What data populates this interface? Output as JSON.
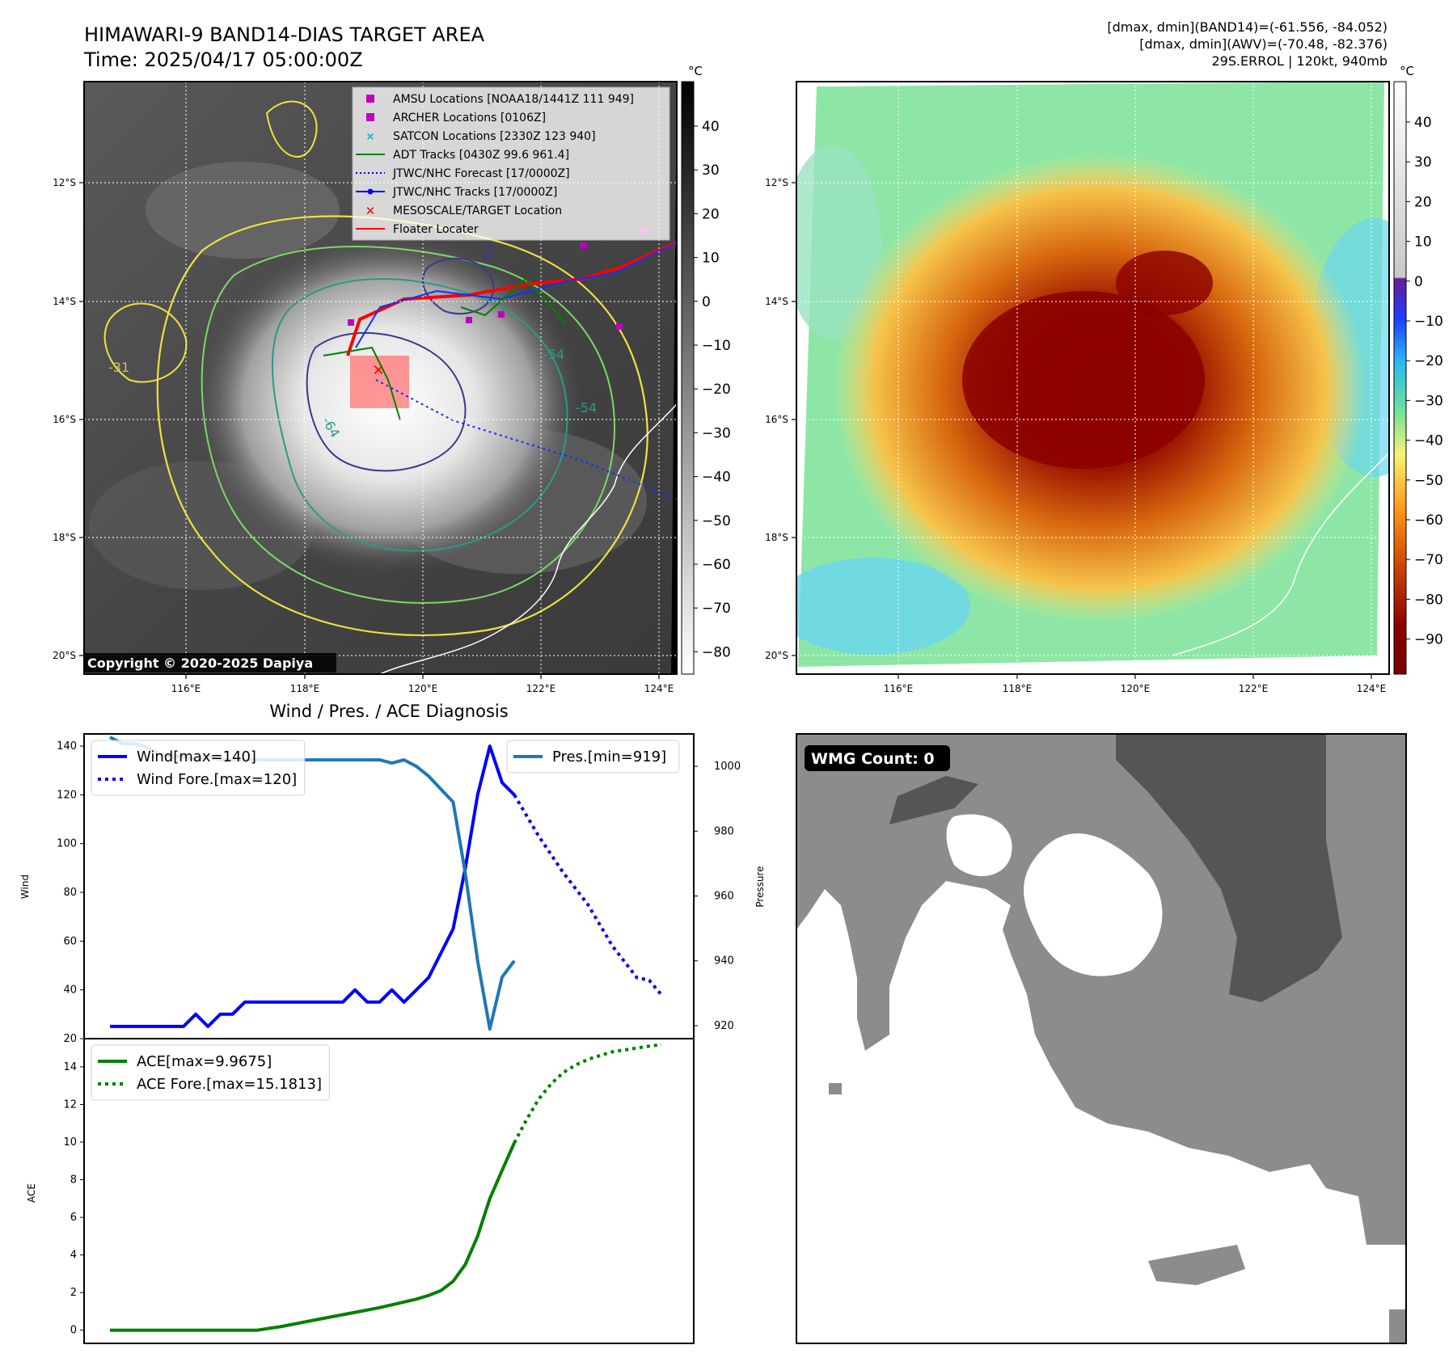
{
  "header": {
    "title_line1": "HIMAWARI-9 BAND14-DIAS TARGET AREA",
    "title_line2": "Time: 2025/04/17 05:00:00Z",
    "info_line1": "[dmax, dmin](BAND14)=(-61.556, -84.052)",
    "info_line2": "[dmax, dmin](AWV)=(-70.48, -82.376)",
    "info_line3": "29S.ERROL | 120kt, 940mb"
  },
  "map_axes": {
    "lon_ticks": [
      "116°E",
      "118°E",
      "120°E",
      "122°E",
      "124°E"
    ],
    "lat_ticks": [
      "12°S",
      "14°S",
      "16°S",
      "18°S",
      "20°S"
    ]
  },
  "ir_panel": {
    "colorbar_unit": "°C",
    "colorbar_ticks": [
      "40",
      "30",
      "20",
      "10",
      "0",
      "−10",
      "−20",
      "−30",
      "−40",
      "−50",
      "−60",
      "−70",
      "−80"
    ],
    "copyright": "Copyright © 2020-2025 Dapiya",
    "contour_labels": [
      "-64",
      "-54",
      "-31",
      "-64",
      "-54"
    ],
    "legend": [
      {
        "label": "AMSU Locations [NOAA18/1441Z 111 949]",
        "color": "#c000c0"
      },
      {
        "label": "ARCHER Locations [0106Z]",
        "color": "#c000c0"
      },
      {
        "label": "SATCON Locations [2330Z 123 940]",
        "color": "#00b5b5"
      },
      {
        "label": "ADT Tracks [0430Z 99.6 961.4]",
        "color": "#008000"
      },
      {
        "label": "JTWC/NHC Forecast [17/0000Z]",
        "color": "#0000ff"
      },
      {
        "label": "JTWC/NHC Tracks [17/0000Z]",
        "color": "#0000ff"
      },
      {
        "label": "MESOSCALE/TARGET Location",
        "color": "#ff0000"
      },
      {
        "label": "Floater Locater",
        "color": "#ff0000"
      }
    ]
  },
  "awv_panel": {
    "colorbar_unit": "°C",
    "colorbar_ticks": [
      "40",
      "30",
      "20",
      "10",
      "0",
      "−10",
      "−20",
      "−30",
      "−40",
      "−50",
      "−60",
      "−70",
      "−80",
      "−90"
    ]
  },
  "wmg_panel": {
    "label": "WMG Count: 0"
  },
  "chart_data": [
    {
      "type": "line",
      "title": "Wind / Pres. / ACE Diagnosis",
      "ylabel": "Wind",
      "ylabel_right": "Pressure",
      "ylim": [
        20,
        145
      ],
      "ylim_right": [
        916,
        1010
      ],
      "yticks": [
        20,
        40,
        60,
        80,
        100,
        120,
        140
      ],
      "yticks_right": [
        920,
        940,
        960,
        980,
        1000
      ],
      "x": [
        0,
        1,
        2,
        3,
        4,
        5,
        6,
        7,
        8,
        9,
        10,
        11,
        12,
        13,
        14,
        15,
        16,
        17,
        18,
        19,
        20,
        21,
        22,
        23,
        24,
        25,
        26,
        27,
        28,
        29,
        30,
        31,
        32,
        33,
        34,
        35,
        36,
        37,
        38,
        39,
        40,
        41,
        42,
        43,
        44,
        45
      ],
      "series": [
        {
          "name": "Wind[max=140]",
          "style": "solid",
          "color": "#0000ff",
          "x": [
            0,
            1,
            2,
            3,
            4,
            5,
            6,
            7,
            8,
            9,
            10,
            11,
            12,
            13,
            14,
            15,
            16,
            17,
            18,
            19,
            20,
            21,
            22,
            23,
            24,
            25,
            26,
            27,
            28,
            29,
            30,
            31,
            32,
            33
          ],
          "values": [
            25,
            25,
            25,
            25,
            25,
            25,
            25,
            30,
            25,
            30,
            30,
            35,
            35,
            35,
            35,
            35,
            35,
            35,
            35,
            35,
            40,
            35,
            35,
            40,
            35,
            40,
            45,
            55,
            65,
            90,
            120,
            140,
            125,
            120
          ]
        },
        {
          "name": "Wind Fore.[max=120]",
          "style": "dotted",
          "color": "#0000ff",
          "x": [
            33,
            35,
            37,
            39,
            41,
            43,
            44,
            45
          ],
          "values": [
            120,
            103,
            88,
            75,
            58,
            45,
            44,
            38
          ]
        },
        {
          "name": "Pres.[min=919]",
          "style": "solid",
          "color": "#1f77b4",
          "axis": "right",
          "x": [
            0,
            1,
            2,
            3,
            4,
            5,
            6,
            7,
            8,
            9,
            10,
            11,
            12,
            13,
            14,
            15,
            16,
            17,
            18,
            19,
            20,
            21,
            22,
            23,
            24,
            25,
            26,
            27,
            28,
            29,
            30,
            31,
            32,
            33
          ],
          "values": [
            1009,
            1007,
            1007,
            1006,
            1004,
            1003,
            1003,
            1002,
            1003,
            1002,
            1002,
            1002,
            1002,
            1002,
            1002,
            1002,
            1002,
            1002,
            1002,
            1002,
            1002,
            1002,
            1002,
            1001,
            1002,
            1000,
            997,
            993,
            989,
            967,
            940,
            919,
            935,
            940
          ]
        }
      ]
    },
    {
      "type": "line",
      "ylabel": "ACE",
      "ylim": [
        -0.7,
        15.5
      ],
      "yticks": [
        0,
        2,
        4,
        6,
        8,
        10,
        12,
        14
      ],
      "series": [
        {
          "name": "ACE[max=9.9675]",
          "style": "solid",
          "color": "#008000",
          "x": [
            0,
            2,
            4,
            6,
            8,
            10,
            12,
            14,
            16,
            18,
            20,
            22,
            23,
            24,
            25,
            26,
            27,
            28,
            29,
            30,
            31,
            32,
            33
          ],
          "values": [
            0,
            0,
            0,
            0,
            0,
            0,
            0,
            0.2,
            0.45,
            0.7,
            0.95,
            1.2,
            1.35,
            1.5,
            1.65,
            1.85,
            2.1,
            2.6,
            3.5,
            5.0,
            7.0,
            8.5,
            9.9675
          ]
        },
        {
          "name": "ACE Fore.[max=15.1813]",
          "style": "dotted",
          "color": "#008000",
          "x": [
            33,
            34,
            35,
            36,
            37,
            38,
            39,
            40,
            41,
            42,
            43,
            44,
            45
          ],
          "values": [
            9.9675,
            11.2,
            12.3,
            13.1,
            13.7,
            14.1,
            14.4,
            14.6,
            14.8,
            14.9,
            15.0,
            15.1,
            15.1813
          ]
        }
      ]
    }
  ]
}
